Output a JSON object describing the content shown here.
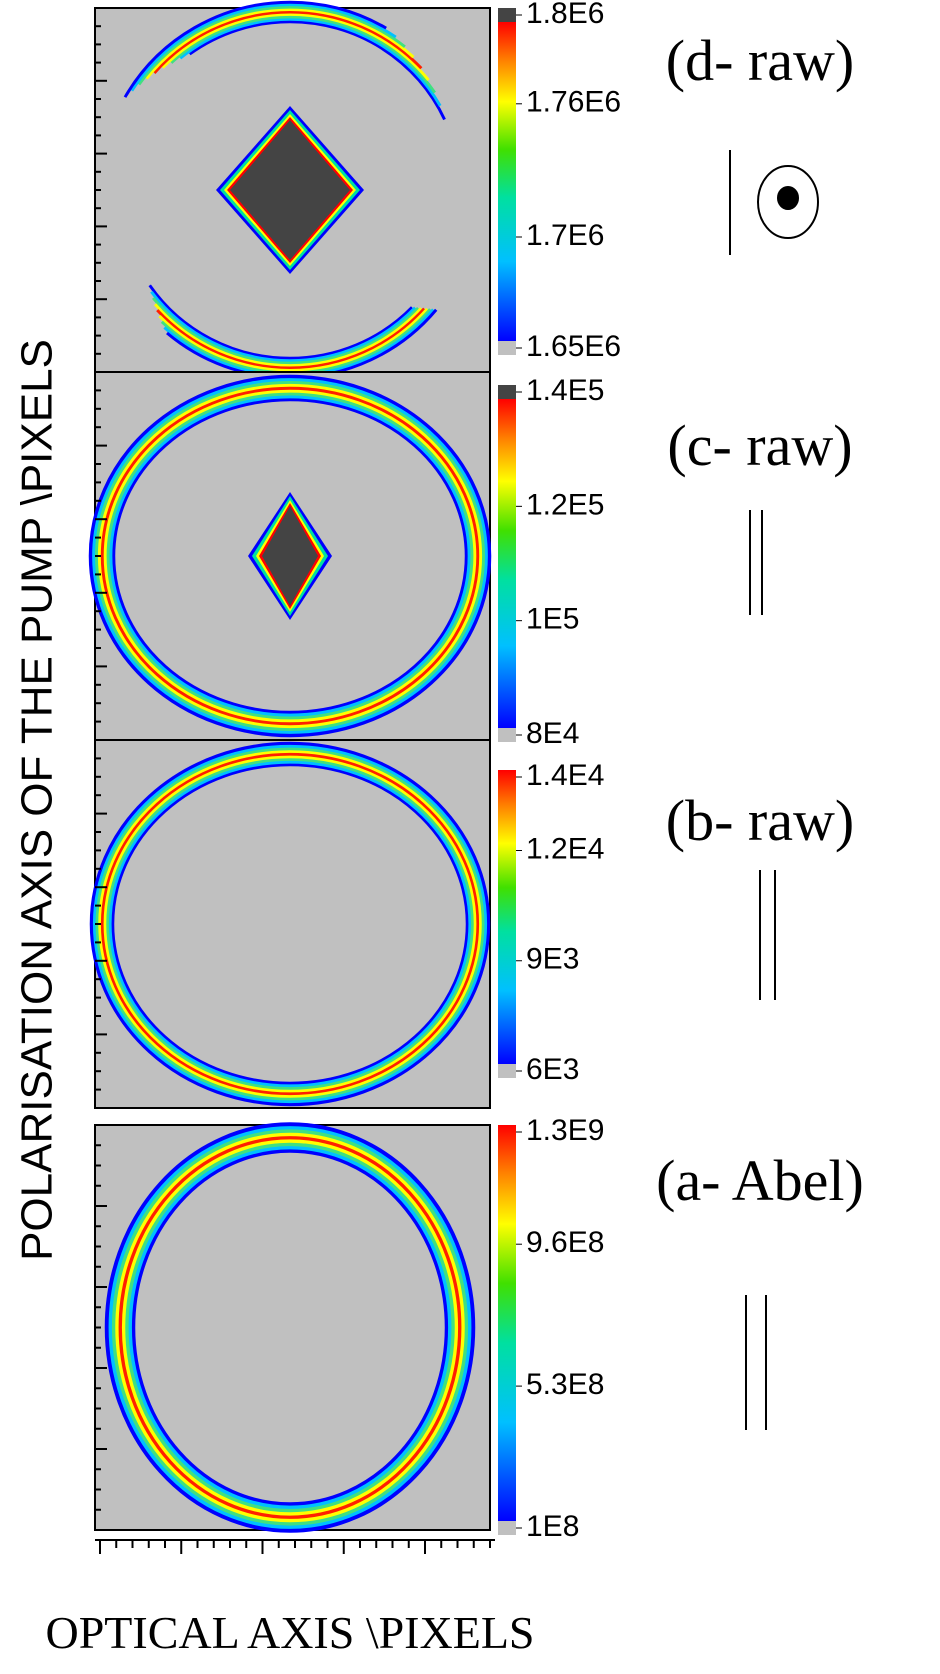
{
  "ylabel": "POLARISATION AXIS OF THE PUMP \\PIXELS",
  "xlabel": "OPTICAL AXIS \\PIXELS",
  "chart_data": [
    {
      "type": "heatmap",
      "annotation": "(d- raw)",
      "clim": [
        1650000,
        1800000
      ],
      "cticks": [
        {
          "value": 1650000,
          "label": "1.65E6"
        },
        {
          "value": 1700000,
          "label": "1.7E6"
        },
        {
          "value": 1760000,
          "label": "1.76E6"
        },
        {
          "value": 1800000,
          "label": "1.8E6"
        }
      ]
    },
    {
      "type": "heatmap",
      "annotation": "(c- raw)",
      "clim": [
        80000,
        140000
      ],
      "cticks": [
        {
          "value": 80000,
          "label": "8E4"
        },
        {
          "value": 100000,
          "label": "1E5"
        },
        {
          "value": 120000,
          "label": "1.2E5"
        },
        {
          "value": 140000,
          "label": "1.4E5"
        }
      ]
    },
    {
      "type": "heatmap",
      "annotation": "(b- raw)",
      "clim": [
        6000,
        14000
      ],
      "cticks": [
        {
          "value": 6000,
          "label": "6E3"
        },
        {
          "value": 9000,
          "label": "9E3"
        },
        {
          "value": 12000,
          "label": "1.2E4"
        },
        {
          "value": 14000,
          "label": "1.4E4"
        }
      ]
    },
    {
      "type": "heatmap",
      "annotation": "(a- Abel)",
      "clim": [
        100000000,
        1300000000
      ],
      "cticks": [
        {
          "value": 100000000,
          "label": "1E8"
        },
        {
          "value": 530000000,
          "label": "5.3E8"
        },
        {
          "value": 960000000,
          "label": "9.6E8"
        },
        {
          "value": 1300000000,
          "label": "1.3E9"
        }
      ]
    }
  ]
}
